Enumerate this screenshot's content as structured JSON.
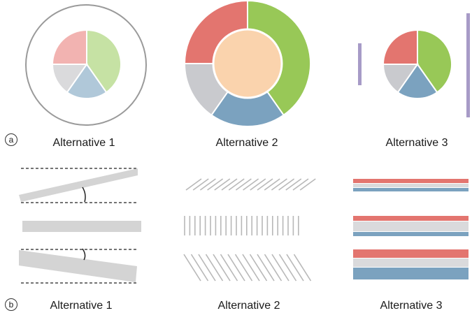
{
  "panels": {
    "a": {
      "marker": "a",
      "labels": [
        "Alternative 1",
        "Alternative 2",
        "Alternative 3"
      ]
    },
    "b": {
      "marker": "b",
      "labels": [
        "Alternative 1",
        "Alternative 2",
        "Alternative 3"
      ]
    }
  },
  "colors": {
    "red": "#e3756f",
    "green": "#98c857",
    "blue": "#7ba2bf",
    "gray": "#c9cace",
    "peach": "#fad3ad",
    "purple": "#a79bc7",
    "light_gray": "#d4d4d4",
    "light_red": "#f2b3b1",
    "light_green": "#c6e2a4",
    "light_blue": "#b0c8d9",
    "light_gray_slice": "#dadadc",
    "outline": "#9a9a9a"
  },
  "pie_slices": [
    "green",
    "blue",
    "gray",
    "red"
  ]
}
